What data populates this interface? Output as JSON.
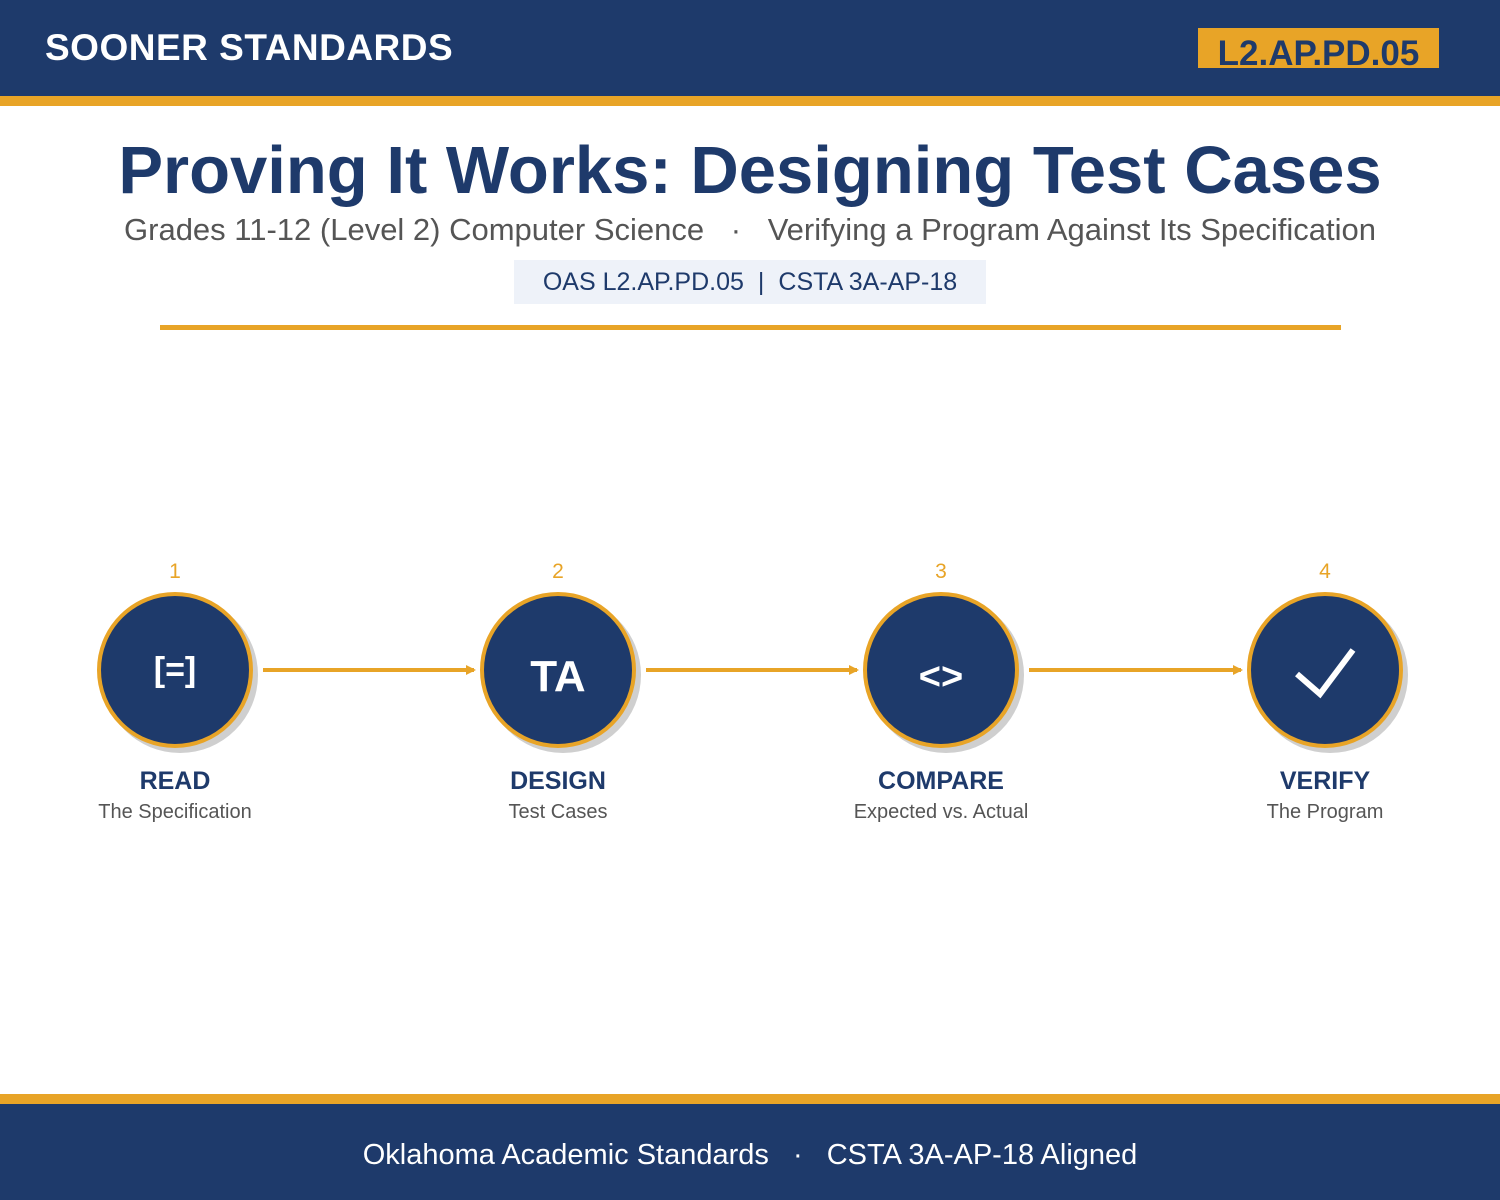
{
  "header": {
    "brand": "SOONER STANDARDS",
    "code": "L2.AP.PD.05"
  },
  "title": "Proving It Works: Designing Test Cases",
  "subtitle": {
    "grade": "Grades 11-12 (Level 2) Computer Science",
    "separator": "·",
    "topic": "Verifying a Program Against Its Specification"
  },
  "standards": {
    "oas": "OAS L2.AP.PD.05",
    "divider": "|",
    "csta": "CSTA 3A-AP-18"
  },
  "steps": [
    {
      "number": "1",
      "icon_text": "[=]",
      "icon": "specification-icon",
      "title": "READ",
      "subtitle": "The Specification"
    },
    {
      "number": "2",
      "icon_text": "TA",
      "icon": "test-case-icon",
      "title": "DESIGN",
      "subtitle": "Test Cases"
    },
    {
      "number": "3",
      "icon_text": "<>",
      "icon": "compare-icon",
      "title": "COMPARE",
      "subtitle": "Expected vs. Actual"
    },
    {
      "number": "4",
      "icon_text": "",
      "icon": "checkmark-icon",
      "title": "VERIFY",
      "subtitle": "The Program"
    }
  ],
  "footer": {
    "left": "Oklahoma Academic Standards",
    "separator": "·",
    "right": "CSTA 3A-AP-18 Aligned"
  },
  "colors": {
    "navy": "#1e3a6b",
    "gold": "#e8a427",
    "gray_text": "#555555",
    "badge_bg": "#eef2f9"
  }
}
